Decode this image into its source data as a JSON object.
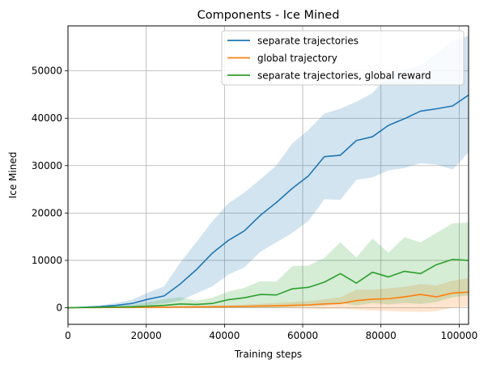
{
  "chart_data": {
    "type": "line",
    "title": "Components - Ice Mined",
    "xlabel": "Training steps",
    "ylabel": "Ice Mined",
    "xlim": [
      0,
      102400
    ],
    "ylim": [
      -3500,
      59500
    ],
    "xticks": [
      0,
      20000,
      40000,
      60000,
      80000,
      100000
    ],
    "yticks": [
      0,
      10000,
      20000,
      30000,
      40000,
      50000
    ],
    "xtick_labels": [
      "0",
      "20000",
      "40000",
      "60000",
      "80000",
      "100000"
    ],
    "ytick_labels": [
      "0",
      "10000",
      "20000",
      "30000",
      "40000",
      "50000"
    ],
    "grid": true,
    "legend_position": "top-right",
    "x": [
      0,
      4096,
      8192,
      12288,
      16384,
      20480,
      24576,
      28672,
      32768,
      36864,
      40960,
      45056,
      49152,
      53248,
      57344,
      61440,
      65536,
      69632,
      73728,
      77824,
      81920,
      86016,
      90112,
      94208,
      98304,
      102400
    ],
    "series": [
      {
        "name": "separate trajectories",
        "color": "#1f77b4",
        "values": [
          0,
          100,
          250,
          500,
          900,
          1800,
          2500,
          5000,
          8000,
          11500,
          14200,
          16200,
          19500,
          22200,
          25200,
          27800,
          31900,
          32200,
          35300,
          36100,
          38500,
          39900,
          41500,
          42000,
          42600,
          44900
        ],
        "lower": [
          0,
          0,
          50,
          150,
          300,
          600,
          900,
          1500,
          3000,
          4500,
          7000,
          8500,
          11800,
          13800,
          15800,
          18300,
          22900,
          22800,
          27000,
          27500,
          29000,
          29500,
          30500,
          30200,
          29200,
          32800
        ],
        "upper": [
          0,
          200,
          500,
          1000,
          1700,
          3200,
          4500,
          9500,
          13800,
          18200,
          22000,
          24300,
          27100,
          30000,
          34700,
          37500,
          41000,
          42000,
          43500,
          45300,
          49100,
          50300,
          51200,
          53700,
          56400,
          57400
        ]
      },
      {
        "name": "global trajectory",
        "color": "#ff7f0e",
        "values": [
          0,
          20,
          40,
          60,
          80,
          100,
          120,
          150,
          180,
          200,
          250,
          300,
          350,
          400,
          500,
          600,
          800,
          900,
          1500,
          1800,
          1900,
          2300,
          2800,
          2300,
          3100,
          3300
        ],
        "lower": [
          0,
          0,
          0,
          0,
          0,
          0,
          0,
          0,
          0,
          0,
          0,
          0,
          0,
          0,
          -100,
          -200,
          -300,
          -200,
          -400,
          -600,
          -700,
          -800,
          -900,
          -700,
          0,
          300
        ],
        "upper": [
          0,
          50,
          100,
          150,
          200,
          250,
          300,
          350,
          400,
          450,
          500,
          650,
          800,
          1000,
          1200,
          1400,
          1800,
          2200,
          3800,
          3800,
          4100,
          4400,
          5000,
          4700,
          5700,
          6300
        ]
      },
      {
        "name": "separate trajectories, global reward",
        "color": "#2ca02c",
        "values": [
          0,
          50,
          100,
          150,
          200,
          350,
          500,
          800,
          700,
          900,
          1700,
          2100,
          2800,
          2700,
          4000,
          4300,
          5400,
          7200,
          5200,
          7500,
          6500,
          7700,
          7200,
          9100,
          10200,
          10000
        ],
        "lower": [
          0,
          0,
          0,
          0,
          0,
          0,
          0,
          0,
          0,
          0,
          0,
          0,
          0,
          0,
          200,
          300,
          500,
          1000,
          500,
          1000,
          700,
          1000,
          800,
          1200,
          2200,
          2600
        ],
        "upper": [
          0,
          150,
          250,
          400,
          600,
          1200,
          1800,
          2200,
          1500,
          2100,
          3400,
          4200,
          5600,
          5500,
          8800,
          8900,
          10500,
          13800,
          10600,
          14600,
          11600,
          14900,
          13800,
          15800,
          17800,
          18000
        ]
      }
    ]
  }
}
